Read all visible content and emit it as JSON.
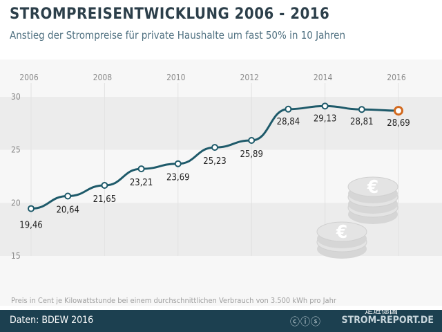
{
  "chart_data": {
    "type": "line",
    "title": "STROMPREISENTWICKLUNG 2006 - 2016",
    "subtitle": "Anstieg der Strompreise für private Haushalte um fast 50% in 10 Jahren",
    "x": [
      2006,
      2007,
      2008,
      2009,
      2010,
      2011,
      2012,
      2013,
      2014,
      2015,
      2016
    ],
    "values": [
      19.46,
      20.64,
      21.65,
      23.21,
      23.69,
      25.23,
      25.89,
      28.84,
      29.13,
      28.81,
      28.69
    ],
    "data_labels": [
      "19,46",
      "20,64",
      "21,65",
      "23,21",
      "23,69",
      "25,23",
      "25,89",
      "28,84",
      "29,13",
      "28,81",
      "28,69"
    ],
    "x_ticks": [
      "2006",
      "2008",
      "2010",
      "2012",
      "2014",
      "2016"
    ],
    "y_ticks": [
      "30",
      "25",
      "20",
      "15"
    ],
    "ylim": [
      15,
      30
    ],
    "grid": true,
    "line_color": "#1e5a6a",
    "highlight_color": "#d2691e"
  },
  "note": "Preis in Cent je Kilowattstunde bei einem durchschnittlichen Verbrauch von 3.500 kWh pro Jahr",
  "footer": {
    "source": "Daten: BDEW 2016",
    "brand": "STROM-REPORT.DE",
    "license_icons": "creative-commons-icons",
    "watermark": "走进德国"
  }
}
